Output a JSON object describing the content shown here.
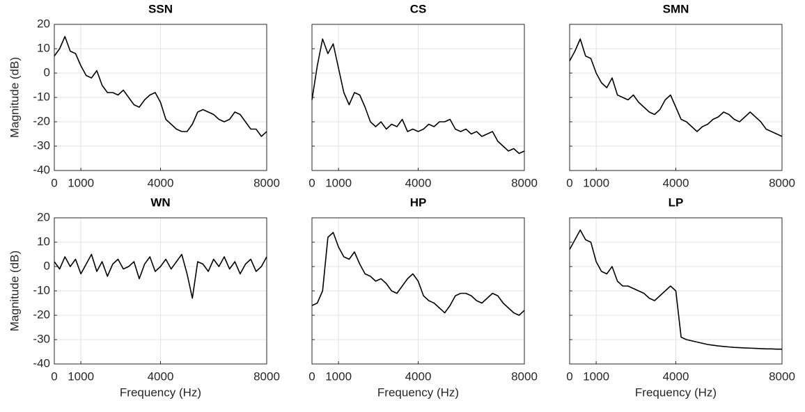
{
  "chart_data": [
    {
      "type": "line",
      "title": "SSN",
      "ylabel": "Magnitude (dB)",
      "color": "#000000",
      "grid": true,
      "show_ytick_labels": true,
      "xlim": [
        0,
        8000
      ],
      "xticks": [
        0,
        1000,
        4000,
        8000
      ],
      "ylim": [
        -40,
        20
      ],
      "yticks": [
        -40,
        -30,
        -20,
        -10,
        0,
        10,
        20
      ],
      "x": [
        0,
        200,
        400,
        600,
        800,
        1000,
        1200,
        1400,
        1600,
        1800,
        2000,
        2200,
        2400,
        2600,
        2800,
        3000,
        3200,
        3400,
        3600,
        3800,
        4000,
        4200,
        4400,
        4600,
        4800,
        5000,
        5200,
        5400,
        5600,
        5800,
        6000,
        6200,
        6400,
        6600,
        6800,
        7000,
        7200,
        7400,
        7600,
        7800,
        8000
      ],
      "values": [
        7,
        10,
        15,
        9,
        8,
        3,
        -1,
        -2,
        1,
        -5,
        -8,
        -8,
        -9,
        -7,
        -10,
        -13,
        -14,
        -11,
        -9,
        -8,
        -12,
        -19,
        -21,
        -23,
        -24,
        -24,
        -21,
        -16,
        -15,
        -16,
        -17,
        -19,
        -20,
        -19,
        -16,
        -17,
        -20,
        -23,
        -23,
        -26,
        -24
      ]
    },
    {
      "type": "line",
      "title": "CS",
      "color": "#000000",
      "grid": true,
      "show_ytick_labels": false,
      "xlim": [
        0,
        8000
      ],
      "xticks": [
        0,
        1000,
        4000,
        8000
      ],
      "ylim": [
        -40,
        20
      ],
      "yticks": [
        -40,
        -30,
        -20,
        -10,
        0,
        10,
        20
      ],
      "x": [
        0,
        200,
        400,
        600,
        800,
        1000,
        1200,
        1400,
        1600,
        1800,
        2000,
        2200,
        2400,
        2600,
        2800,
        3000,
        3200,
        3400,
        3600,
        3800,
        4000,
        4200,
        4400,
        4600,
        4800,
        5000,
        5200,
        5400,
        5600,
        5800,
        6000,
        6200,
        6400,
        6600,
        6800,
        7000,
        7200,
        7400,
        7600,
        7800,
        8000
      ],
      "values": [
        -11,
        3,
        14,
        8,
        12,
        2,
        -8,
        -13,
        -8,
        -9,
        -14,
        -20,
        -22,
        -20,
        -23,
        -21,
        -22,
        -19,
        -24,
        -23,
        -24,
        -23,
        -21,
        -22,
        -20,
        -20,
        -19,
        -23,
        -24,
        -23,
        -25,
        -24,
        -26,
        -25,
        -24,
        -28,
        -30,
        -32,
        -31,
        -33,
        -32
      ]
    },
    {
      "type": "line",
      "title": "SMN",
      "color": "#000000",
      "grid": true,
      "show_ytick_labels": false,
      "xlim": [
        0,
        8000
      ],
      "xticks": [
        0,
        1000,
        4000,
        8000
      ],
      "ylim": [
        -40,
        20
      ],
      "yticks": [
        -40,
        -30,
        -20,
        -10,
        0,
        10,
        20
      ],
      "x": [
        0,
        200,
        400,
        600,
        800,
        1000,
        1200,
        1400,
        1600,
        1800,
        2000,
        2200,
        2400,
        2600,
        2800,
        3000,
        3200,
        3400,
        3600,
        3800,
        4000,
        4200,
        4400,
        4600,
        4800,
        5000,
        5200,
        5400,
        5600,
        5800,
        6000,
        6200,
        6400,
        6600,
        6800,
        7000,
        7200,
        7400,
        7600,
        7800,
        8000
      ],
      "values": [
        5,
        9,
        14,
        7,
        6,
        0,
        -4,
        -6,
        -2,
        -9,
        -10,
        -11,
        -9,
        -12,
        -14,
        -16,
        -17,
        -15,
        -11,
        -9,
        -14,
        -19,
        -20,
        -22,
        -24,
        -22,
        -21,
        -19,
        -18,
        -16,
        -17,
        -19,
        -20,
        -18,
        -16,
        -18,
        -20,
        -23,
        -24,
        -25,
        -26
      ]
    },
    {
      "type": "line",
      "title": "WN",
      "ylabel": "Magnitude (dB)",
      "xlabel": "Frequency (Hz)",
      "color": "#000000",
      "grid": true,
      "show_ytick_labels": true,
      "xlim": [
        0,
        8000
      ],
      "xticks": [
        0,
        1000,
        4000,
        8000
      ],
      "ylim": [
        -40,
        20
      ],
      "yticks": [
        -40,
        -30,
        -20,
        -10,
        0,
        10,
        20
      ],
      "x": [
        0,
        200,
        400,
        600,
        800,
        1000,
        1200,
        1400,
        1600,
        1800,
        2000,
        2200,
        2400,
        2600,
        2800,
        3000,
        3200,
        3400,
        3600,
        3800,
        4000,
        4200,
        4400,
        4600,
        4800,
        5000,
        5200,
        5400,
        5600,
        5800,
        6000,
        6200,
        6400,
        6600,
        6800,
        7000,
        7200,
        7400,
        7600,
        7800,
        8000
      ],
      "values": [
        2,
        -1,
        4,
        0,
        3,
        -3,
        1,
        5,
        -2,
        2,
        -4,
        1,
        3,
        -1,
        0,
        2,
        -5,
        1,
        4,
        -2,
        0,
        3,
        -1,
        2,
        5,
        -3,
        -13,
        2,
        1,
        -2,
        3,
        0,
        4,
        -1,
        2,
        -3,
        1,
        3,
        -2,
        0,
        4
      ]
    },
    {
      "type": "line",
      "title": "HP",
      "xlabel": "Frequency (Hz)",
      "color": "#000000",
      "grid": true,
      "show_ytick_labels": false,
      "xlim": [
        0,
        8000
      ],
      "xticks": [
        0,
        1000,
        4000,
        8000
      ],
      "ylim": [
        -40,
        20
      ],
      "yticks": [
        -40,
        -30,
        -20,
        -10,
        0,
        10,
        20
      ],
      "x": [
        0,
        200,
        400,
        600,
        800,
        1000,
        1200,
        1400,
        1600,
        1800,
        2000,
        2200,
        2400,
        2600,
        2800,
        3000,
        3200,
        3400,
        3600,
        3800,
        4000,
        4200,
        4400,
        4600,
        4800,
        5000,
        5200,
        5400,
        5600,
        5800,
        6000,
        6200,
        6400,
        6600,
        6800,
        7000,
        7200,
        7400,
        7600,
        7800,
        8000
      ],
      "values": [
        -16,
        -15,
        -10,
        12,
        14,
        8,
        4,
        3,
        6,
        1,
        -3,
        -4,
        -6,
        -5,
        -7,
        -10,
        -11,
        -8,
        -5,
        -3,
        -6,
        -12,
        -14,
        -15,
        -17,
        -19,
        -16,
        -12,
        -11,
        -11,
        -12,
        -14,
        -15,
        -13,
        -11,
        -12,
        -15,
        -17,
        -19,
        -20,
        -18
      ]
    },
    {
      "type": "line",
      "title": "LP",
      "xlabel": "Frequency (Hz)",
      "color": "#000000",
      "grid": true,
      "show_ytick_labels": false,
      "xlim": [
        0,
        8000
      ],
      "xticks": [
        0,
        1000,
        4000,
        8000
      ],
      "ylim": [
        -40,
        20
      ],
      "yticks": [
        -40,
        -30,
        -20,
        -10,
        0,
        10,
        20
      ],
      "x": [
        0,
        200,
        400,
        600,
        800,
        1000,
        1200,
        1400,
        1600,
        1800,
        2000,
        2200,
        2400,
        2600,
        2800,
        3000,
        3200,
        3400,
        3600,
        3800,
        4000,
        4200,
        4400,
        4600,
        4800,
        5000,
        5200,
        5400,
        5600,
        5800,
        6000,
        6200,
        6400,
        6600,
        6800,
        7000,
        7200,
        7400,
        7600,
        7800,
        8000
      ],
      "values": [
        7,
        11,
        15,
        11,
        10,
        2,
        -2,
        -3,
        0,
        -6,
        -8,
        -8,
        -9,
        -10,
        -11,
        -13,
        -14,
        -12,
        -10,
        -8,
        -10,
        -29,
        -30,
        -30.5,
        -31,
        -31.5,
        -32,
        -32.3,
        -32.6,
        -32.8,
        -33,
        -33.2,
        -33.3,
        -33.4,
        -33.5,
        -33.6,
        -33.7,
        -33.8,
        -33.8,
        -33.9,
        -33.9
      ]
    }
  ]
}
